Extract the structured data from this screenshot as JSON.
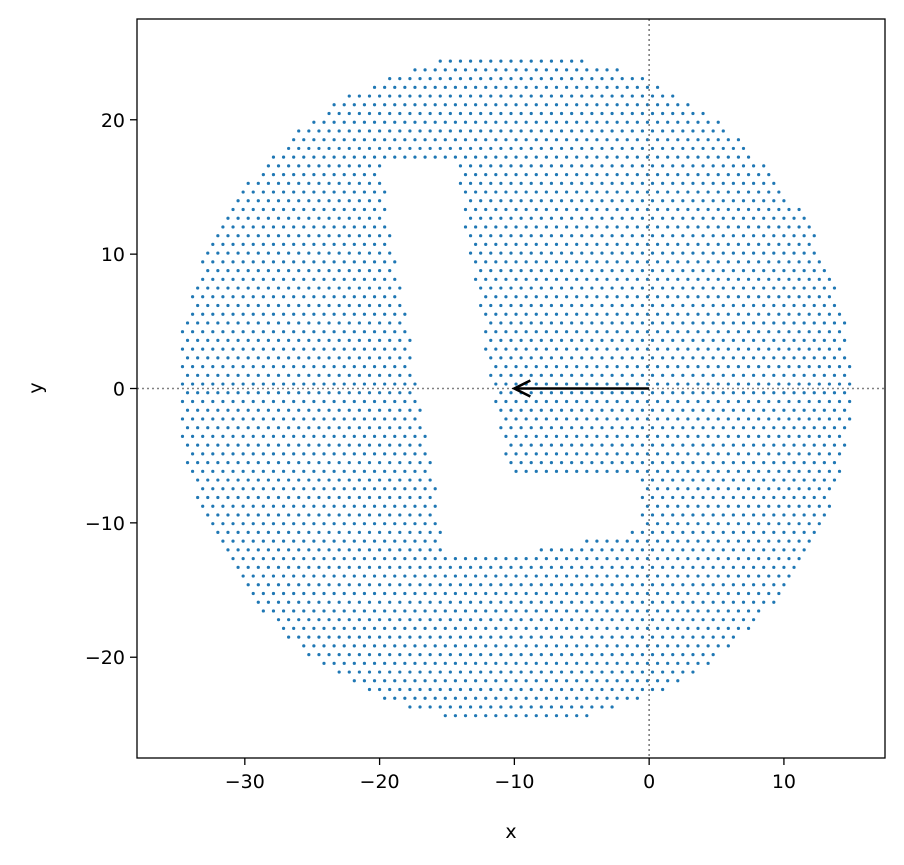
{
  "chart_data": {
    "type": "scatter",
    "xlabel": "x",
    "ylabel": "y",
    "xlim": [
      -38,
      17.5
    ],
    "ylim": [
      -27.5,
      27.5
    ],
    "xticks": [
      -30,
      -20,
      -10,
      0,
      10
    ],
    "yticks": [
      -20,
      -10,
      0,
      10,
      20
    ],
    "xtick_labels": [
      "−30",
      "−20",
      "−10",
      "0",
      "10"
    ],
    "ytick_labels": [
      "−20",
      "−10",
      "0",
      "10",
      "20"
    ],
    "grid": false,
    "reference_lines": {
      "x": 0,
      "y": 0,
      "style": "dotted",
      "color": "#808080"
    },
    "point_color": "#1f77b4",
    "arrow": {
      "from": [
        0,
        0
      ],
      "to": [
        -10,
        0
      ],
      "color": "#000000"
    },
    "point_region": {
      "description_shape": "disk with L-shaped cutout",
      "circle": {
        "cx": -10,
        "cy": 0,
        "r": 25
      },
      "grid_spacing": 0.75,
      "cutout": [
        [
          -20,
          17
        ],
        [
          -14.5,
          17
        ],
        [
          -10.5,
          -6.8
        ],
        [
          -0.5,
          -6.8
        ],
        [
          -0.5,
          -10.5
        ],
        [
          -8,
          -12
        ],
        [
          -15,
          -12.5
        ]
      ]
    }
  }
}
